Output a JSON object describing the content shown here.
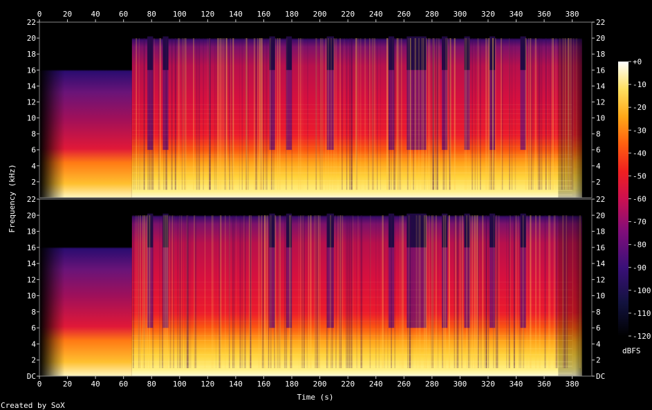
{
  "chart_data": {
    "type": "heatmap",
    "xlabel": "Time (s)",
    "ylabel": "Frequency (kHz)",
    "x_ticks": [
      0,
      20,
      40,
      60,
      80,
      100,
      120,
      140,
      160,
      180,
      200,
      220,
      240,
      260,
      280,
      300,
      320,
      340,
      360,
      380
    ],
    "x_range": [
      0,
      394
    ],
    "y_range": [
      0,
      22
    ],
    "y_ticks_upper": [
      "22",
      "20",
      "18",
      "16",
      "14",
      "12",
      "10",
      "8",
      "6",
      "4",
      "2"
    ],
    "y_ticks_lower": [
      "22",
      "20",
      "18",
      "16",
      "14",
      "12",
      "10",
      "8",
      "6",
      "4",
      "2",
      "DC"
    ],
    "channels": 2,
    "cutoff_khz": 20,
    "intro_cutoff_khz": 16,
    "colorbar": {
      "label": "dBFS",
      "ticks": [
        "+0",
        "-10",
        "-20",
        "-30",
        "-40",
        "-50",
        "-60",
        "-70",
        "-80",
        "-90",
        "-100",
        "-110",
        "-120"
      ],
      "range": [
        -120,
        0
      ]
    },
    "footer": "Created by SoX"
  }
}
